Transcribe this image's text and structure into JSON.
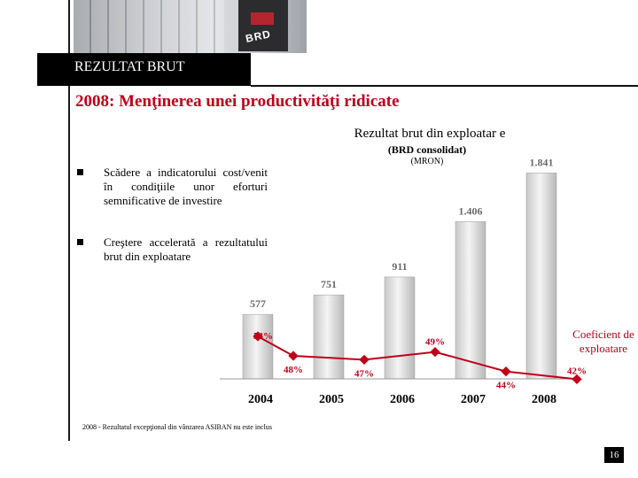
{
  "header": {
    "section_title": "REZULTAT BRUT",
    "subtitle": "2008: Menţinerea unei productivităţi ridicate",
    "photo_logo": "BRD"
  },
  "bullets": [
    "Scădere a indicatorului cost/venit în condiţiile unor eforturi semnificative de investire",
    "Creştere accelerată a rezultatului brut din exploatare"
  ],
  "chart_data": {
    "type": "bar",
    "title": "Rezultat brut din exploatar e",
    "subtitle": "(BRD consolidat)",
    "unit": "(MRON)",
    "categories": [
      "2004",
      "2005",
      "2006",
      "2007",
      "2008"
    ],
    "value_labels": [
      "577",
      "751",
      "911",
      "1.406",
      "1.841"
    ],
    "values": [
      577,
      751,
      911,
      1406,
      1841
    ],
    "ylim": [
      0,
      1900
    ],
    "grid": false,
    "bar_color": "#d9d9d9",
    "line_series": {
      "name": "Coeficient de exploatare",
      "values": [
        53,
        48,
        47,
        49,
        44,
        42
      ],
      "labels": [
        "53%",
        "48%",
        "47%",
        "49%",
        "44%",
        "42%"
      ],
      "x_positions": [
        0,
        0.5,
        1.5,
        2.5,
        3.5,
        4.5
      ],
      "color": "#c0001a"
    },
    "legend_note": "Coeficient de exploatare"
  },
  "footnote": "2008 - Rezultatul excepţional din vânzarea ASIBAN nu este inclus",
  "page_number": "16",
  "colors": {
    "accent": "#c0001a",
    "title_bar": "#000000"
  }
}
